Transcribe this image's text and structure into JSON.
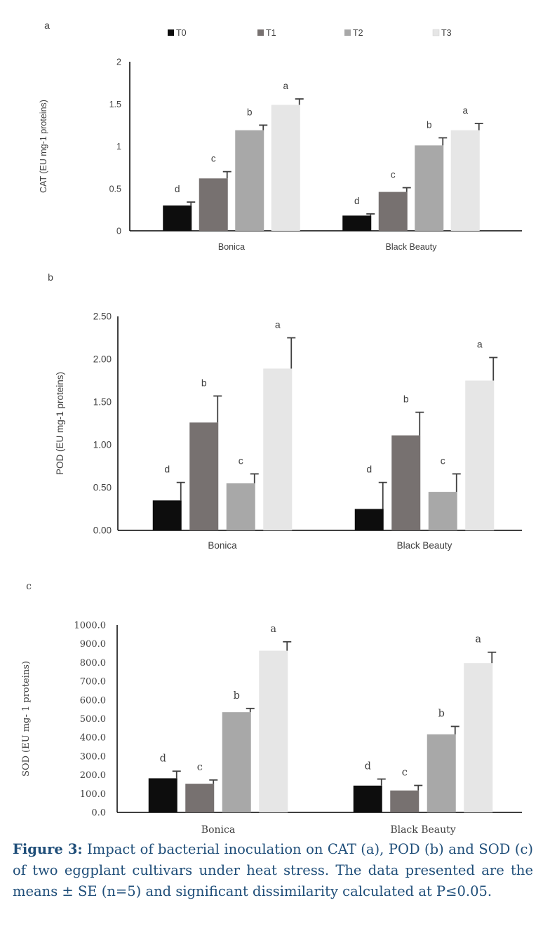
{
  "legend": [
    {
      "label": "T0",
      "color": "#0d0d0d"
    },
    {
      "label": "T1",
      "color": "#777170"
    },
    {
      "label": "T2",
      "color": "#a8a8a8"
    },
    {
      "label": "T3",
      "color": "#e6e6e6"
    }
  ],
  "chart_data": [
    {
      "panel": "a",
      "type": "bar",
      "categories": [
        "Bonica",
        "Black Beauty"
      ],
      "series": [
        {
          "name": "T0",
          "values": [
            0.3,
            0.18
          ],
          "errors": [
            0.04,
            0.02
          ],
          "letters": [
            "d",
            "d"
          ]
        },
        {
          "name": "T1",
          "values": [
            0.62,
            0.46
          ],
          "errors": [
            0.08,
            0.05
          ],
          "letters": [
            "c",
            "c"
          ]
        },
        {
          "name": "T2",
          "values": [
            1.19,
            1.01
          ],
          "errors": [
            0.06,
            0.09
          ],
          "letters": [
            "b",
            "b"
          ]
        },
        {
          "name": "T3",
          "values": [
            1.49,
            1.19
          ],
          "errors": [
            0.07,
            0.08
          ],
          "letters": [
            "a",
            "a"
          ]
        }
      ],
      "ylabel": "CAT (EU mg-1 proteins)",
      "ylim": [
        0,
        2
      ],
      "yticks": [
        "0",
        "0.5",
        "1",
        "1.5",
        "2"
      ],
      "legend_position": "top"
    },
    {
      "panel": "b",
      "type": "bar",
      "categories": [
        "Bonica",
        "Black Beauty"
      ],
      "series": [
        {
          "name": "T0",
          "values": [
            0.35,
            0.25
          ],
          "errors": [
            0.21,
            0.31
          ],
          "letters": [
            "d",
            "d"
          ]
        },
        {
          "name": "T1",
          "values": [
            1.26,
            1.11
          ],
          "errors": [
            0.31,
            0.27
          ],
          "letters": [
            "b",
            "b"
          ]
        },
        {
          "name": "T2",
          "values": [
            0.55,
            0.45
          ],
          "errors": [
            0.11,
            0.21
          ],
          "letters": [
            "c",
            "c"
          ]
        },
        {
          "name": "T3",
          "values": [
            1.89,
            1.75
          ],
          "errors": [
            0.36,
            0.27
          ],
          "letters": [
            "a",
            "a"
          ]
        }
      ],
      "ylabel": "POD (EU mg-1 proteins)",
      "ylim": [
        0,
        2.5
      ],
      "yticks": [
        "0.00",
        "0.50",
        "1.00",
        "1.50",
        "2.00",
        "2.50"
      ]
    },
    {
      "panel": "c",
      "type": "bar",
      "categories": [
        "Bonica",
        "Black Beauty"
      ],
      "series": [
        {
          "name": "T0",
          "values": [
            182,
            143
          ],
          "errors": [
            38,
            35
          ],
          "letters": [
            "d",
            "d"
          ]
        },
        {
          "name": "T1",
          "values": [
            153,
            117
          ],
          "errors": [
            20,
            27
          ],
          "letters": [
            "c",
            "c"
          ]
        },
        {
          "name": "T2",
          "values": [
            535,
            417
          ],
          "errors": [
            20,
            42
          ],
          "letters": [
            "b",
            "b"
          ]
        },
        {
          "name": "T3",
          "values": [
            863,
            797
          ],
          "errors": [
            48,
            58
          ],
          "letters": [
            "a",
            "a"
          ]
        }
      ],
      "ylabel": "SOD (EU mg- 1 proteins)",
      "ylim": [
        0,
        1000
      ],
      "yticks": [
        "0.0",
        "100.0",
        "200.0",
        "300.0",
        "400.0",
        "500.0",
        "600.0",
        "700.0",
        "800.0",
        "900.0",
        "1000.0"
      ]
    }
  ],
  "caption": {
    "label": "Figure 3:",
    "text": " Impact of bacterial inoculation on CAT (a), POD (b) and SOD (c) of two eggplant cultivars under heat stress. The data presented are the means ± SE (n=5) and significant dissimilarity calculated at P≤0.05."
  }
}
